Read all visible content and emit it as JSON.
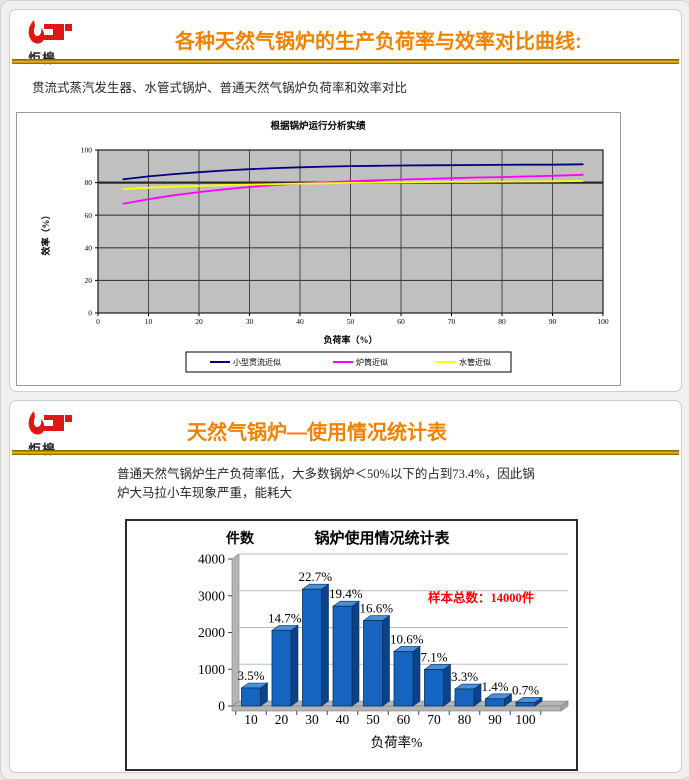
{
  "logo": {
    "brand_text": "炬槔",
    "flame_color": "#e01515"
  },
  "slide1": {
    "title": "各种天然气锅炉的生产负荷率与效率对比曲线:",
    "title_color": "#f08200",
    "body_text": "贯流式蒸汽发生器、水管式锅炉、普通天然气锅炉负荷率和效率对比"
  },
  "slide2": {
    "title": "天然气锅炉—使用情况统计表",
    "title_color": "#f08200",
    "body_line1": "普通天然气锅炉生产负荷率低，大多数锅炉＜50%以下的占到73.4%，因此锅",
    "body_line2": "炉大马拉小车现象严重，能耗大"
  },
  "chart_data": [
    {
      "type": "line",
      "title": "根据锅炉运行分析实绩",
      "xlabel": "负荷率（%）",
      "ylabel": "效率（%）",
      "xlim": [
        0,
        100
      ],
      "ylim": [
        0,
        100
      ],
      "x_ticks": [
        0,
        10,
        20,
        30,
        40,
        50,
        60,
        70,
        80,
        90,
        100
      ],
      "y_ticks": [
        0,
        20,
        40,
        60,
        80,
        100
      ],
      "grid": true,
      "plot_bg": "#c0c0c0",
      "ref_line_y": 80,
      "legend_position": "bottom",
      "x": [
        5,
        10,
        15,
        20,
        25,
        30,
        35,
        40,
        45,
        50,
        55,
        60,
        65,
        70,
        75,
        80,
        85,
        90,
        96
      ],
      "series": [
        {
          "name": "小型贯流近似",
          "color": "#000080",
          "values": [
            82,
            83.8,
            85.2,
            86.4,
            87.4,
            88.2,
            88.9,
            89.4,
            89.8,
            90.1,
            90.3,
            90.5,
            90.6,
            90.7,
            90.8,
            90.9,
            91,
            91,
            91.2
          ]
        },
        {
          "name": "炉筒近似",
          "color": "#ff00ff",
          "values": [
            67,
            69.8,
            72.2,
            74.2,
            75.9,
            77.3,
            78.5,
            79.4,
            80.2,
            80.8,
            81.4,
            81.9,
            82.3,
            82.7,
            83.1,
            83.4,
            83.8,
            84.2,
            84.8
          ]
        },
        {
          "name": "水管近似",
          "color": "#ffff00",
          "values": [
            76,
            76.9,
            77.5,
            78,
            78.4,
            78.8,
            79.1,
            79.4,
            79.6,
            79.8,
            80,
            80.1,
            80.3,
            80.4,
            80.5,
            80.6,
            80.7,
            80.8,
            81
          ]
        }
      ]
    },
    {
      "type": "bar",
      "title": "锅炉使用情况统计表",
      "y_axis_title": "件数",
      "xlabel": "负荷率%",
      "categories": [
        "10",
        "20",
        "30",
        "40",
        "50",
        "60",
        "70",
        "80",
        "90",
        "100"
      ],
      "values": [
        490,
        2058,
        3178,
        2716,
        2324,
        1484,
        994,
        462,
        196,
        98
      ],
      "labels": [
        "3.5%",
        "14.7%",
        "22.7%",
        "19.4%",
        "16.6%",
        "10.6%",
        "7.1%",
        "3.3%",
        "1.4%",
        "0.7%"
      ],
      "percentages": [
        3.5,
        14.7,
        22.7,
        19.4,
        16.6,
        10.6,
        7.1,
        3.3,
        1.4,
        0.7
      ],
      "annotation": {
        "text": "样本总数：14000件",
        "color": "#ff0000"
      },
      "sample_total": 14000,
      "ylim": [
        0,
        4000
      ],
      "y_ticks": [
        0,
        1000,
        2000,
        3000,
        4000
      ],
      "grid": true,
      "bar_front_color": "#1565c0",
      "bar_side_color": "#0c4288",
      "bar_top_color": "#4a90d9",
      "bar_outline_color": "#07305f",
      "wall_color": "#b5b5b5"
    }
  ]
}
